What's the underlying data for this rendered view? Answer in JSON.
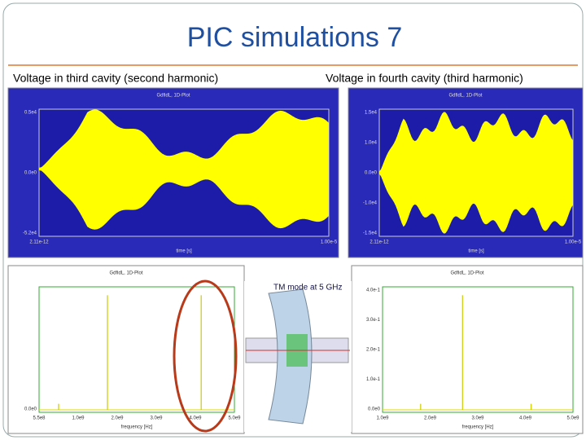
{
  "title": "PIC simulations 7",
  "captions": [
    "Voltage in third cavity (second harmonic)",
    "Voltage in fourth cavity (third harmonic)"
  ],
  "panels": [
    {
      "header": "GdfidL, 1D-Plot",
      "y_labels": [
        "0.5e4",
        "0.0e0",
        "-5.2e4"
      ],
      "x_labels": [
        "2.11e-12",
        "1.00e-5"
      ],
      "x_title": "time [s]"
    },
    {
      "header": "GdfidL, 1D-Plot",
      "y_labels": [
        "1.5e4",
        "1.0e4",
        "0.0e0",
        "-1.0e4",
        "-1.5e4"
      ],
      "x_labels": [
        "2.11e-12",
        "1.00e-5"
      ],
      "x_title": "time [s]"
    },
    {
      "header": "GdfidL, 1D-Plot",
      "y_labels": [
        "0.0e0"
      ],
      "x_labels": [
        "5.5e8",
        "1.0e9",
        "2.0e9",
        "3.0e9",
        "4.0e9",
        "5.0e9"
      ],
      "x_title": "frequency [Hz]"
    },
    {
      "header": "GdfidL, 1D-Plot",
      "y_labels": [
        "4.0e-1",
        "3.0e-1",
        "2.0e-1",
        "1.0e-1",
        "0.0e0"
      ],
      "x_labels": [
        "1.0e9",
        "2.0e9",
        "3.0e9",
        "4.0e9",
        "5.0e9"
      ],
      "x_title": "frequency [Hz]"
    }
  ],
  "inset_label": "TM mode at 5 GHz"
}
